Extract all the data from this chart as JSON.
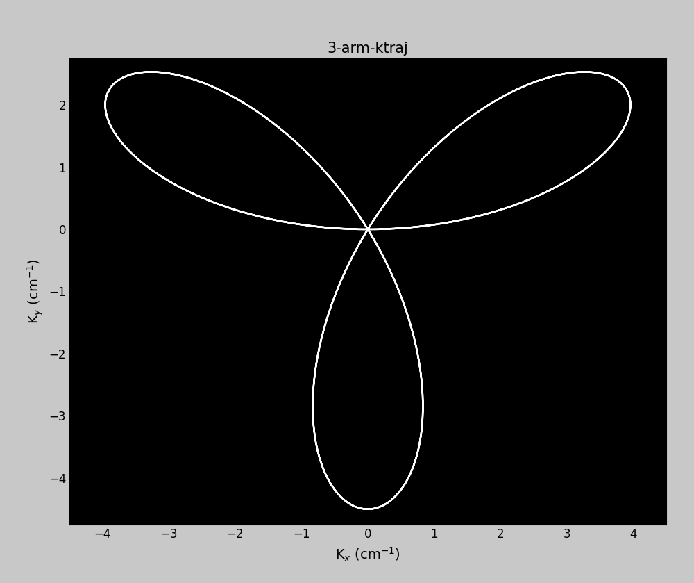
{
  "title": "3-arm-ktraj",
  "xlabel": "K_x (cm⁻¹)",
  "ylabel": "K_y (cm⁻¹)",
  "xlim": [
    -4.5,
    4.5
  ],
  "ylim": [
    -4.75,
    2.75
  ],
  "background_color": "#000000",
  "figure_background": "#c8c8c8",
  "line_color": "#ffffff",
  "line_width": 1.8,
  "num_points": 10000,
  "amplitude": 4.5,
  "title_fontsize": 15,
  "label_fontsize": 14,
  "tick_fontsize": 12,
  "xticks": [
    -4,
    -3,
    -2,
    -1,
    0,
    1,
    2,
    3,
    4
  ],
  "yticks": [
    -4,
    -3,
    -2,
    -1,
    0,
    1,
    2
  ]
}
